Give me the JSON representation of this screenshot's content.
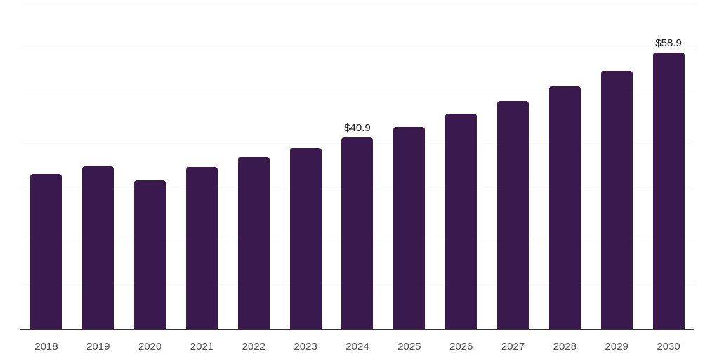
{
  "chart_data": {
    "type": "bar",
    "title": "",
    "xlabel": "",
    "ylabel": "",
    "categories": [
      "2018",
      "2019",
      "2020",
      "2021",
      "2022",
      "2023",
      "2024",
      "2025",
      "2026",
      "2027",
      "2028",
      "2029",
      "2030"
    ],
    "values": [
      33.2,
      34.8,
      31.8,
      34.7,
      36.7,
      38.6,
      40.9,
      43.2,
      46.0,
      48.7,
      51.8,
      55.1,
      58.9
    ],
    "data_labels": [
      "",
      "",
      "",
      "",
      "",
      "",
      "$40.9",
      "",
      "",
      "",
      "",
      "",
      "$58.9"
    ],
    "ylim": [
      0,
      70
    ],
    "grid_step": 10,
    "grid": true,
    "legend": false,
    "y_tick_labels_visible": false,
    "bar_color": "#3a1a4e",
    "grid_color": "#f2f2f2",
    "axis_color": "#333333",
    "tick_label_color": "#4f4f4f",
    "value_label_color": "#1a1a1a"
  }
}
